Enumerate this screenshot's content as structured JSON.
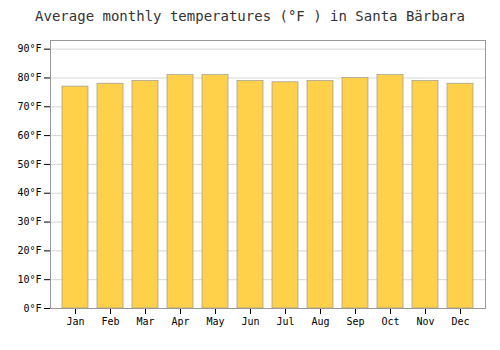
{
  "chart_data": {
    "type": "bar",
    "title": "Average monthly temperatures (°F ) in Santa Bärbara",
    "categories": [
      "Jan",
      "Feb",
      "Mar",
      "Apr",
      "May",
      "Jun",
      "Jul",
      "Aug",
      "Sep",
      "Oct",
      "Nov",
      "Dec"
    ],
    "values": [
      77,
      78,
      79,
      81,
      81,
      79,
      78.5,
      79,
      80,
      81,
      79,
      78
    ],
    "color": "#FFD04A",
    "ylim": [
      0,
      93
    ],
    "yticks": [
      {
        "value": 0,
        "label": "0°F"
      },
      {
        "value": 10,
        "label": "10°F"
      },
      {
        "value": 20,
        "label": "20°F"
      },
      {
        "value": 30,
        "label": "30°F"
      },
      {
        "value": 40,
        "label": "40°F"
      },
      {
        "value": 50,
        "label": "50°F"
      },
      {
        "value": 60,
        "label": "60°F"
      },
      {
        "value": 70,
        "label": "70°F"
      },
      {
        "value": 80,
        "label": "80°F"
      },
      {
        "value": 90,
        "label": "90°F"
      }
    ],
    "grid": true
  }
}
